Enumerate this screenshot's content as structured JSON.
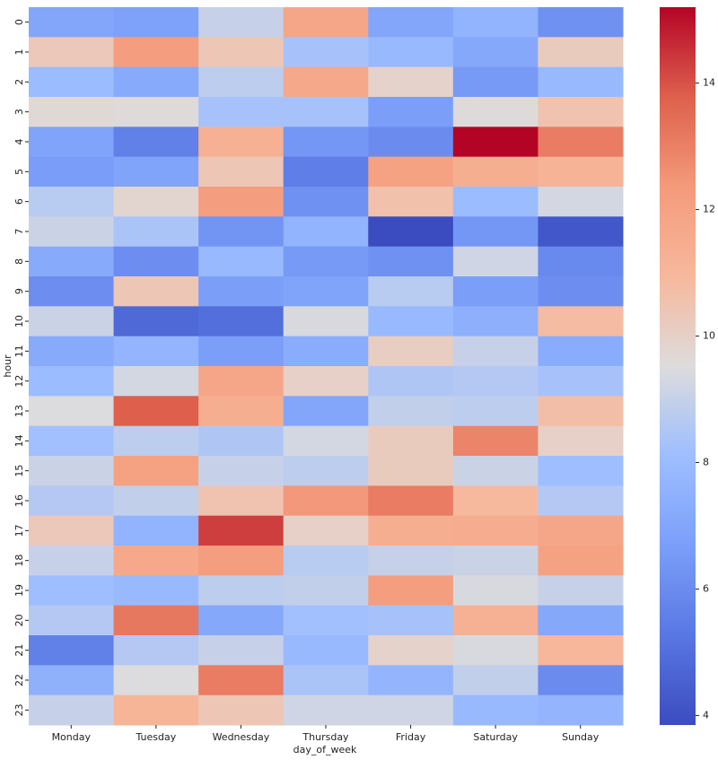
{
  "chart_data": {
    "type": "heatmap",
    "xlabel": "day_of_week",
    "ylabel": "hour",
    "x_categories": [
      "Monday",
      "Tuesday",
      "Wednesday",
      "Thursday",
      "Friday",
      "Saturday",
      "Sunday"
    ],
    "y_categories": [
      "0",
      "1",
      "2",
      "3",
      "4",
      "5",
      "6",
      "7",
      "8",
      "9",
      "10",
      "11",
      "12",
      "13",
      "14",
      "15",
      "16",
      "17",
      "18",
      "19",
      "20",
      "21",
      "22",
      "23"
    ],
    "values": [
      [
        7.0,
        6.8,
        9.0,
        11.8,
        7.0,
        7.6,
        6.2
      ],
      [
        10.3,
        12.2,
        10.4,
        8.3,
        7.9,
        7.1,
        10.2
      ],
      [
        8.0,
        7.2,
        8.8,
        11.7,
        9.9,
        6.5,
        7.9
      ],
      [
        9.7,
        9.6,
        8.3,
        8.3,
        6.7,
        9.6,
        10.5
      ],
      [
        6.9,
        5.6,
        11.3,
        6.4,
        6.0,
        15.2,
        13.1
      ],
      [
        6.6,
        6.9,
        10.4,
        5.5,
        12.0,
        11.4,
        11.2
      ],
      [
        8.7,
        9.8,
        12.2,
        6.2,
        10.6,
        8.0,
        9.3
      ],
      [
        9.1,
        8.4,
        6.3,
        7.6,
        3.85,
        6.4,
        4.2
      ],
      [
        7.2,
        6.1,
        7.9,
        6.5,
        6.2,
        9.2,
        5.9
      ],
      [
        6.1,
        10.4,
        6.7,
        6.9,
        8.7,
        6.7,
        6.1
      ],
      [
        9.1,
        4.8,
        5.0,
        9.4,
        7.9,
        7.4,
        10.8
      ],
      [
        7.2,
        7.7,
        6.7,
        7.3,
        10.1,
        9.0,
        7.3
      ],
      [
        8.0,
        9.3,
        11.8,
        10.0,
        8.5,
        8.6,
        8.3
      ],
      [
        9.5,
        13.8,
        11.4,
        7.0,
        8.9,
        8.8,
        10.7
      ],
      [
        8.2,
        8.8,
        8.5,
        9.3,
        10.2,
        12.9,
        10.0
      ],
      [
        9.1,
        12.0,
        9.0,
        8.8,
        10.2,
        9.1,
        8.1
      ],
      [
        8.6,
        8.9,
        10.5,
        12.4,
        13.1,
        10.9,
        8.6
      ],
      [
        10.3,
        7.6,
        14.3,
        10.0,
        11.4,
        11.5,
        11.8
      ],
      [
        9.0,
        11.7,
        12.2,
        8.7,
        9.0,
        9.1,
        12.0
      ],
      [
        8.1,
        7.9,
        8.8,
        8.9,
        12.2,
        9.4,
        9.0
      ],
      [
        8.6,
        13.2,
        7.1,
        8.2,
        8.3,
        11.3,
        7.1
      ],
      [
        5.6,
        8.6,
        9.0,
        7.9,
        9.9,
        9.4,
        11.0
      ],
      [
        7.5,
        9.5,
        13.1,
        8.4,
        7.7,
        8.9,
        6.0
      ],
      [
        9.0,
        11.1,
        10.4,
        9.2,
        9.2,
        7.9,
        7.7
      ]
    ],
    "colormap": "coolwarm",
    "colors": [
      "#3b4cc0",
      "#5977e3",
      "#7b9ff9",
      "#9ebeff",
      "#dddcdc",
      "#f7b89c",
      "#f49a7b",
      "#de604d",
      "#b40426"
    ],
    "zlim": [
      3.85,
      15.2
    ],
    "colorbar_ticks": [
      4,
      6,
      8,
      10,
      12,
      14
    ]
  }
}
